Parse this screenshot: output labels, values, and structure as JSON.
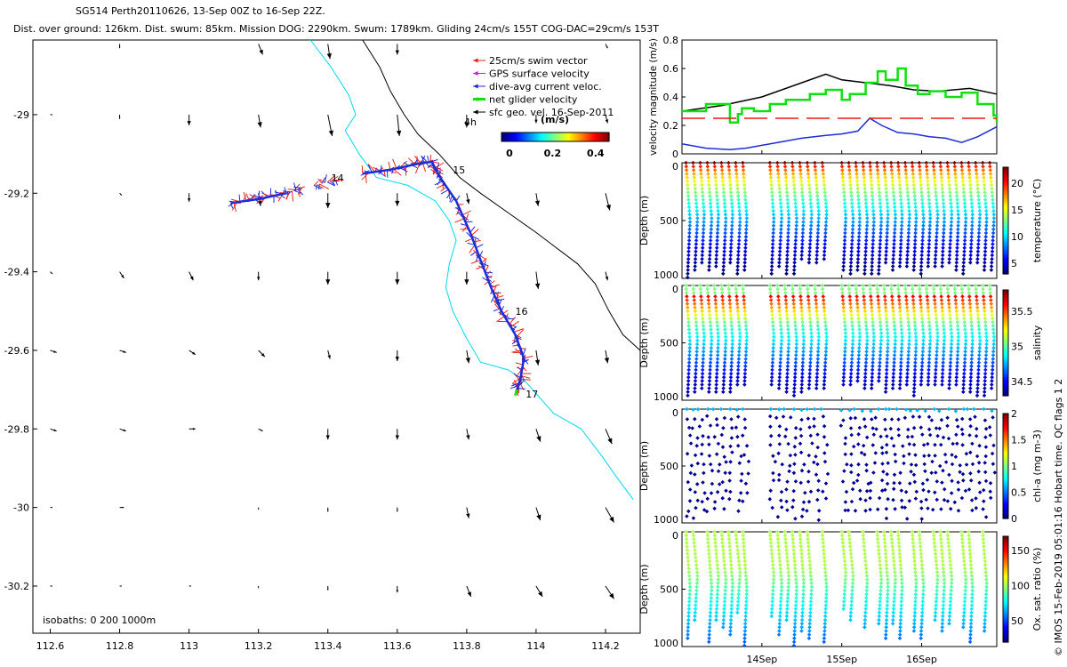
{
  "header": {
    "title": "SG514 Perth20110626, 13-Sep 00Z to 16-Sep 22Z.",
    "subtitle": "Dist. over ground: 126km. Dist. swum: 85km. Mission DOG: 2290km. Swum: 1789km. Gliding 24cm/s 155T COG-DAC=29cm/s 153T"
  },
  "credit": "© IMOS 15-Feb-2019 05:01:16 Hobart time. QC flags 1  2",
  "colors": {
    "swim": "#e8251c",
    "gps": "#d818d8",
    "dac": "#1f2cd6",
    "net": "#10e010",
    "sfc": "#000000",
    "isobath_200": "#00d8f0",
    "isobath_1000": "#000000",
    "threshold": "#e81818"
  },
  "chart_data": [
    {
      "type": "scatter",
      "name": "map",
      "xlim": [
        112.55,
        114.3
      ],
      "ylim": [
        -30.32,
        -28.81
      ],
      "xticks": [
        112.6,
        112.8,
        113,
        113.2,
        113.4,
        113.6,
        113.8,
        114,
        114.2
      ],
      "xticklabels": [
        "112.6",
        "112.8",
        "113",
        "113.2",
        "113.4",
        "113.6",
        "113.8",
        "114",
        "114.2"
      ],
      "yticks": [
        -29,
        -29.2,
        -29.4,
        -29.6,
        -29.8,
        -30,
        -30.2
      ],
      "yticklabels": [
        "-29",
        "-29.2",
        "-29.4",
        "-29.6",
        "-29.8",
        "-30",
        "-30.2"
      ],
      "legend": {
        "position": "top-right",
        "entries": [
          "25cm/s swim vector",
          "GPS surface velocity",
          "dive-avg current veloc.",
          "net glider velocity",
          "sfc geo. vel. 16-Sep-2011"
        ]
      },
      "colorbar": {
        "label": "(m/s)",
        "ticks": [
          "0",
          "0.2",
          "0.4"
        ],
        "range": [
          0,
          0.5
        ]
      },
      "annotation_4h": "4h",
      "isobath_note": "isobaths: 0   200   1000m",
      "day_labels": [
        {
          "text": "14",
          "lon": 113.41,
          "lat": -29.17
        },
        {
          "text": "15",
          "lon": 113.76,
          "lat": -29.15
        },
        {
          "text": "16",
          "lon": 113.94,
          "lat": -29.51
        },
        {
          "text": "17",
          "lon": 113.97,
          "lat": -29.72
        }
      ],
      "glider_track": [
        [
          113.12,
          -29.225
        ],
        [
          113.2,
          -29.215
        ],
        [
          113.28,
          -29.2
        ],
        [
          113.33,
          -29.185
        ],
        [
          113.36,
          -29.18
        ],
        [
          113.43,
          -29.165
        ],
        [
          113.5,
          -29.15
        ],
        [
          113.58,
          -29.14
        ],
        [
          113.66,
          -29.125
        ],
        [
          113.7,
          -29.12
        ],
        [
          113.72,
          -29.155
        ],
        [
          113.77,
          -29.22
        ],
        [
          113.81,
          -29.3
        ],
        [
          113.84,
          -29.37
        ],
        [
          113.87,
          -29.44
        ],
        [
          113.9,
          -29.5
        ],
        [
          113.94,
          -29.56
        ],
        [
          113.965,
          -29.62
        ],
        [
          113.955,
          -29.67
        ],
        [
          113.945,
          -29.7
        ]
      ],
      "isobath_200m": [
        [
          113.35,
          -28.81
        ],
        [
          113.41,
          -28.88
        ],
        [
          113.46,
          -28.95
        ],
        [
          113.48,
          -29.0
        ],
        [
          113.45,
          -29.04
        ],
        [
          113.49,
          -29.1
        ],
        [
          113.54,
          -29.16
        ],
        [
          113.63,
          -29.18
        ],
        [
          113.71,
          -29.22
        ],
        [
          113.75,
          -29.27
        ],
        [
          113.77,
          -29.32
        ],
        [
          113.75,
          -29.38
        ],
        [
          113.74,
          -29.44
        ],
        [
          113.76,
          -29.5
        ],
        [
          113.8,
          -29.57
        ],
        [
          113.84,
          -29.63
        ],
        [
          113.92,
          -29.65
        ],
        [
          113.97,
          -29.68
        ],
        [
          114.05,
          -29.76
        ],
        [
          114.13,
          -29.8
        ],
        [
          114.19,
          -29.87
        ],
        [
          114.23,
          -29.92
        ],
        [
          114.28,
          -29.98
        ]
      ],
      "isobath_1000m": [
        [
          113.5,
          -28.81
        ],
        [
          113.55,
          -28.88
        ],
        [
          113.58,
          -28.94
        ],
        [
          113.62,
          -29.0
        ],
        [
          113.66,
          -29.05
        ],
        [
          113.72,
          -29.1
        ],
        [
          113.78,
          -29.16
        ],
        [
          113.84,
          -29.2
        ],
        [
          113.92,
          -29.25
        ],
        [
          114.0,
          -29.3
        ],
        [
          114.06,
          -29.34
        ],
        [
          114.12,
          -29.38
        ],
        [
          114.17,
          -29.43
        ],
        [
          114.21,
          -29.5
        ],
        [
          114.25,
          -29.56
        ],
        [
          114.3,
          -29.6
        ]
      ],
      "sfc_grid": {
        "lons": [
          112.6,
          112.8,
          113,
          113.2,
          113.4,
          113.6,
          113.8,
          114,
          114.2
        ],
        "lats": [
          -28.82,
          -29,
          -29.2,
          -29.4,
          -29.6,
          -29.8,
          -30,
          -30.2
        ],
        "u": [
          [
            0,
            0,
            0,
            0.02,
            0.01,
            0,
            0,
            0,
            0.01
          ],
          [
            0.01,
            0,
            0,
            0.01,
            0.02,
            0.01,
            0,
            0,
            0.01
          ],
          [
            0,
            0.01,
            0,
            0.01,
            0,
            0,
            0.01,
            0.01,
            0.02
          ],
          [
            0.01,
            0.02,
            0.02,
            0,
            0,
            0,
            0,
            0.01,
            0.01
          ],
          [
            0.03,
            0.03,
            0.03,
            0.03,
            0.01,
            0,
            0.01,
            0.01,
            0.01
          ],
          [
            0.03,
            0.03,
            0.03,
            0.02,
            0,
            0,
            0.01,
            0.02,
            0.03
          ],
          [
            0.01,
            0.02,
            0,
            0,
            0,
            0,
            0.01,
            0.02,
            0.04
          ],
          [
            0.01,
            0.01,
            0.01,
            0,
            0,
            0,
            0.02,
            0.03,
            0.04
          ]
        ],
        "v": [
          [
            0,
            -0.02,
            0,
            -0.05,
            -0.07,
            -0.05,
            0,
            0,
            -0.02
          ],
          [
            0,
            -0.02,
            -0.05,
            -0.06,
            -0.1,
            -0.1,
            -0.06,
            -0.04,
            -0.04
          ],
          [
            0,
            -0.01,
            -0.04,
            -0.06,
            -0.07,
            -0.06,
            -0.05,
            -0.06,
            -0.08
          ],
          [
            -0.01,
            -0.03,
            -0.04,
            -0.04,
            -0.06,
            -0.06,
            -0.06,
            -0.08,
            -0.04
          ],
          [
            -0.01,
            -0.01,
            -0.02,
            -0.03,
            -0.04,
            -0.05,
            -0.06,
            -0.07,
            -0.06
          ],
          [
            -0.01,
            -0.01,
            0,
            -0.01,
            -0.05,
            -0.05,
            -0.05,
            -0.06,
            -0.07
          ],
          [
            0,
            0,
            0,
            -0.01,
            -0.02,
            -0.02,
            -0.05,
            -0.06,
            -0.07
          ],
          [
            0,
            0,
            0,
            -0.01,
            -0.02,
            -0.03,
            -0.05,
            -0.05,
            -0.06
          ]
        ]
      }
    },
    {
      "type": "line",
      "name": "velocity",
      "ylabel": "velocity magnitude (m/s)",
      "xlim": [
        13.0,
        16.94
      ],
      "ylim": [
        0,
        0.8
      ],
      "yticks": [
        0,
        0.2,
        0.4,
        0.6,
        0.8
      ],
      "yticklabels": [
        "0",
        "0.2",
        "0.4",
        "0.6",
        "0.8"
      ],
      "series": [
        {
          "key": "black",
          "x": [
            13.0,
            13.5,
            14.0,
            14.5,
            14.8,
            15.0,
            15.3,
            15.6,
            15.9,
            16.2,
            16.6,
            16.94
          ],
          "y": [
            0.3,
            0.34,
            0.4,
            0.5,
            0.56,
            0.52,
            0.5,
            0.48,
            0.45,
            0.44,
            0.46,
            0.42
          ]
        },
        {
          "key": "green",
          "x": [
            13.0,
            13.3,
            13.6,
            13.7,
            13.75,
            13.9,
            14.1,
            14.3,
            14.6,
            14.8,
            15.0,
            15.1,
            15.3,
            15.45,
            15.55,
            15.7,
            15.8,
            15.95,
            16.1,
            16.3,
            16.5,
            16.7,
            16.9,
            16.94
          ],
          "y": [
            0.3,
            0.35,
            0.22,
            0.28,
            0.32,
            0.3,
            0.35,
            0.38,
            0.42,
            0.45,
            0.38,
            0.42,
            0.5,
            0.58,
            0.52,
            0.6,
            0.48,
            0.42,
            0.44,
            0.4,
            0.43,
            0.35,
            0.27,
            0.22
          ]
        },
        {
          "key": "blue",
          "x": [
            13.0,
            13.3,
            13.6,
            13.8,
            14.0,
            14.3,
            14.5,
            14.8,
            15.0,
            15.2,
            15.35,
            15.5,
            15.7,
            15.9,
            16.1,
            16.3,
            16.5,
            16.7,
            16.94
          ],
          "y": [
            0.07,
            0.04,
            0.03,
            0.04,
            0.06,
            0.09,
            0.11,
            0.13,
            0.14,
            0.16,
            0.25,
            0.2,
            0.15,
            0.14,
            0.12,
            0.11,
            0.08,
            0.12,
            0.19
          ]
        },
        {
          "key": "red",
          "x": [
            13.0,
            16.94
          ],
          "y": [
            0.25,
            0.25
          ]
        }
      ]
    },
    {
      "type": "scatter",
      "name": "temperature",
      "ylabel": "Depth (m)",
      "colorbar_label": "temperature (°C)",
      "cticks": [
        "5",
        "10",
        "15",
        "20"
      ],
      "clim": [
        3,
        23
      ],
      "ylim": [
        0,
        1000
      ],
      "yticks": [
        0,
        500,
        1000
      ]
    },
    {
      "type": "scatter",
      "name": "salinity",
      "ylabel": "Depth (m)",
      "colorbar_label": "salinity",
      "cticks": [
        "34.5",
        "35",
        "35.5"
      ],
      "clim": [
        34.3,
        35.8
      ],
      "ylim": [
        0,
        1000
      ],
      "yticks": [
        0,
        500,
        1000
      ]
    },
    {
      "type": "scatter",
      "name": "chl-a",
      "ylabel": "Depth (m)",
      "colorbar_label": "chl-a (mg m-3)",
      "cticks": [
        "0",
        "0.5",
        "1",
        "1.5",
        "2"
      ],
      "clim": [
        0,
        2
      ],
      "ylim": [
        0,
        1000
      ],
      "yticks": [
        0,
        500,
        1000
      ]
    },
    {
      "type": "scatter",
      "name": "oxygen",
      "ylabel": "Depth (m)",
      "colorbar_label": "Ox. sat. ratio (%)",
      "cticks": [
        "50",
        "100",
        "150"
      ],
      "clim": [
        20,
        170
      ],
      "ylim": [
        0,
        1000
      ],
      "yticks": [
        0,
        500,
        1000
      ],
      "xticks": [
        14,
        15,
        16
      ],
      "xticklabels": [
        "14Sep",
        "15Sep",
        "16Sep"
      ],
      "xlim": [
        13.0,
        16.94
      ]
    }
  ]
}
